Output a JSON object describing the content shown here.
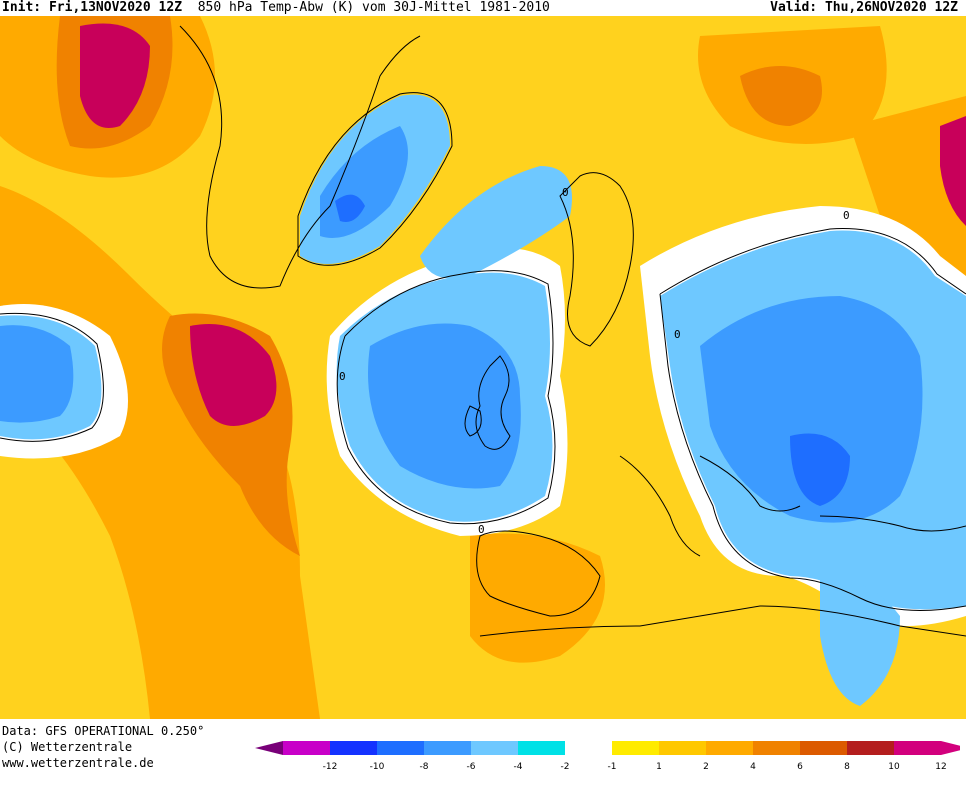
{
  "header": {
    "init_label": "Init:",
    "init_value": "Fri,13NOV2020 12Z",
    "field": "850 hPa Temp-Abw (K) vom 30J-Mittel 1981-2010",
    "valid_label": "Valid:",
    "valid_value": "Thu,26NOV2020 12Z"
  },
  "credits": {
    "data_line": "Data: GFS OPERATIONAL 0.250°",
    "copyright": "(C) Wetterzentrale",
    "url": "www.wetterzentrale.de"
  },
  "legend": {
    "ticks": [
      "-12",
      "-10",
      "-8",
      "-6",
      "-4",
      "-2",
      "-1",
      "1",
      "2",
      "4",
      "6",
      "8",
      "10",
      "12"
    ],
    "colors": [
      "#c800c8",
      "#1432ff",
      "#1e6eff",
      "#3c9bff",
      "#6ec8ff",
      "#00e1e6",
      "#ffffff",
      "#ffeb00",
      "#ffc800",
      "#ffaa00",
      "#f08200",
      "#dc5a00",
      "#b41e1e",
      "#d2007d"
    ],
    "cap_left_color": "#780078",
    "cap_right_color": "#d2007d"
  },
  "map_colors": {
    "warm_base": "#ffd21e",
    "warm_mid": "#ffaa00",
    "warm_strong": "#f08200",
    "warm_max": "#c8005a",
    "neutral": "#ffffff",
    "cold_light": "#6ec8ff",
    "cold_mid": "#3c9bff",
    "cold_strong": "#1e6eff"
  },
  "contour_label": "0"
}
